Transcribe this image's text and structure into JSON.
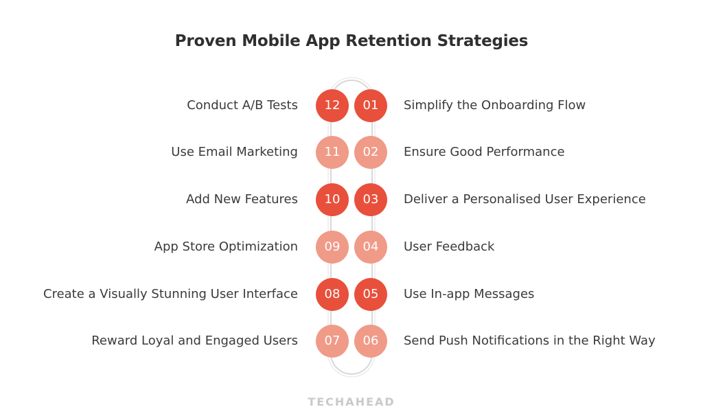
{
  "title": "Proven Mobile App Retention Strategies",
  "colors": {
    "dark": "#e8503c",
    "light": "#f09a88"
  },
  "rows": [
    {
      "left_label": "Conduct A/B Tests",
      "left_num": "12",
      "right_num": "01",
      "right_label": "Simplify the Onboarding Flow",
      "tone": "dark"
    },
    {
      "left_label": "Use Email Marketing",
      "left_num": "11",
      "right_num": "02",
      "right_label": "Ensure Good Performance",
      "tone": "light"
    },
    {
      "left_label": "Add New Features",
      "left_num": "10",
      "right_num": "03",
      "right_label": "Deliver a Personalised User Experience",
      "tone": "dark"
    },
    {
      "left_label": "App Store Optimization",
      "left_num": "09",
      "right_num": "04",
      "right_label": "User Feedback",
      "tone": "light"
    },
    {
      "left_label": "Create a Visually Stunning User Interface",
      "left_num": "08",
      "right_num": "05",
      "right_label": "Use In-app Messages",
      "tone": "dark"
    },
    {
      "left_label": "Reward Loyal and Engaged Users",
      "left_num": "07",
      "right_num": "06",
      "right_label": "Send Push Notifications in the Right Way",
      "tone": "light"
    }
  ],
  "logo": "TECHAHEAD"
}
